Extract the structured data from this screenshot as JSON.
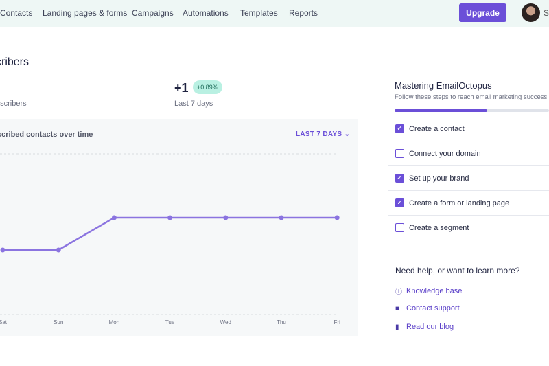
{
  "nav": {
    "items": [
      "Contacts",
      "Landing pages & forms",
      "Campaigns",
      "Automations",
      "Templates",
      "Reports"
    ],
    "upgrade": "Upgrade",
    "user_initial": "Sl"
  },
  "page": {
    "title": "cribers",
    "stat1_label": "bscribers",
    "change_value": "+1",
    "change_badge": "+0.89%",
    "change_label": "Last 7 days"
  },
  "chart_header": {
    "title": "scribed contacts over time",
    "range": "LAST 7 DAYS"
  },
  "chart_data": {
    "type": "line",
    "categories": [
      "Sat",
      "Sun",
      "Mon",
      "Tue",
      "Wed",
      "Thu",
      "Fri"
    ],
    "values": [
      0,
      0,
      1,
      1,
      1,
      1,
      1
    ],
    "color": "#8b74e0",
    "grid": true
  },
  "panel": {
    "title": "Mastering EmailOctopus",
    "subtitle": "Follow these steps to reach email marketing success",
    "progress_percent": 60,
    "tasks": [
      {
        "label": "Create a contact",
        "done": true
      },
      {
        "label": "Connect your domain",
        "done": false
      },
      {
        "label": "Set up your brand",
        "done": true
      },
      {
        "label": "Create a form or landing page",
        "done": true
      },
      {
        "label": "Create a segment",
        "done": false
      }
    ]
  },
  "help": {
    "title": "Need help, or want to learn more?",
    "links": [
      {
        "label": "Knowledge base",
        "icon": "info-icon"
      },
      {
        "label": "Contact support",
        "icon": "chat-icon"
      },
      {
        "label": "Read our blog",
        "icon": "document-icon"
      }
    ]
  }
}
